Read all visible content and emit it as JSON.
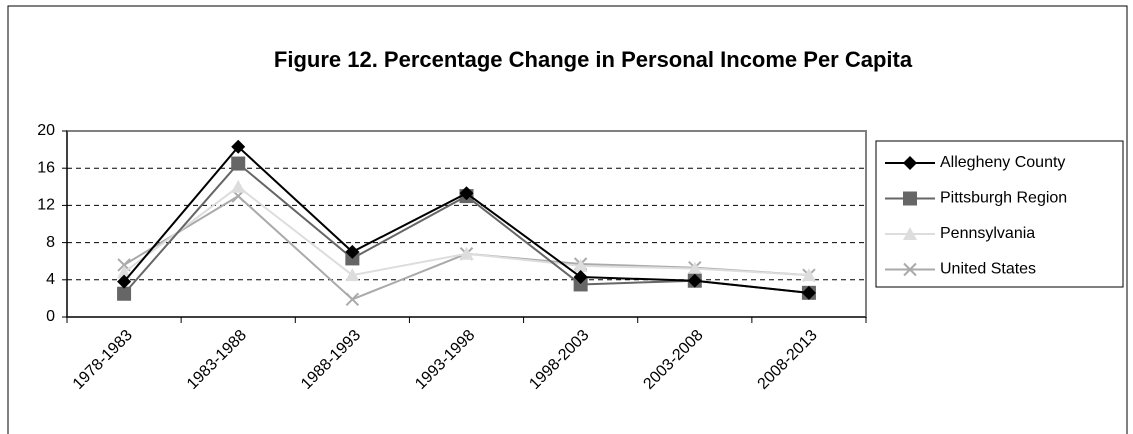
{
  "chart_data": {
    "type": "line",
    "title": "Figure 12. Percentage Change in Personal Income Per Capita",
    "categories": [
      "1978-1983",
      "1983-1988",
      "1988-1993",
      "1993-1998",
      "1998-2003",
      "2003-2008",
      "2008-2013"
    ],
    "series": [
      {
        "name": "Allegheny County",
        "color": "#000000",
        "marker": "diamond",
        "values": [
          3.8,
          18.3,
          7.0,
          13.3,
          4.3,
          3.9,
          2.6
        ]
      },
      {
        "name": "Pittsburgh Region",
        "color": "#666666",
        "marker": "square",
        "values": [
          2.5,
          16.5,
          6.3,
          13.0,
          3.5,
          3.9,
          2.6
        ]
      },
      {
        "name": "Pennsylvania",
        "color": "#dddddd",
        "marker": "triangle",
        "values": [
          4.8,
          14.0,
          4.5,
          6.8,
          5.5,
          5.2,
          4.5
        ]
      },
      {
        "name": "United States",
        "color": "#aaaaaa",
        "marker": "x",
        "values": [
          5.6,
          13.0,
          1.9,
          6.8,
          5.7,
          5.3,
          4.5
        ]
      }
    ],
    "ylim": [
      0,
      20
    ],
    "yticks": [
      0,
      4,
      8,
      12,
      16,
      20
    ],
    "grid": true,
    "legend": "right"
  }
}
